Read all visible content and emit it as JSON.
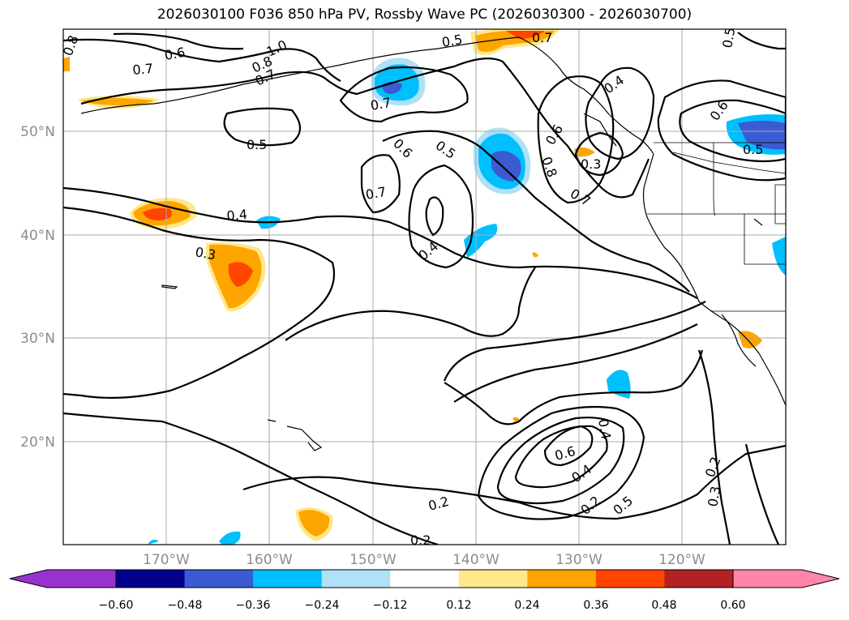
{
  "title": "2026030100 F036 850 hPa PV, Rossby Wave PC (2026030300 - 2026030700)",
  "latitude_labels": [
    "50°N",
    "40°N",
    "30°N",
    "20°N"
  ],
  "longitude_labels": [
    "170°W",
    "160°W",
    "150°W",
    "140°W",
    "130°W",
    "120°W"
  ],
  "contour_labels": [
    "0.8",
    "0.6",
    "0.7",
    "1.0",
    "0.8",
    "0.7",
    "0.5",
    "0.7",
    "0.5",
    "0.6",
    "0.5",
    "0.7",
    "0.4",
    "0.3",
    "0.4",
    "0.6",
    "0.8",
    "0.7",
    "0.3",
    "0.4",
    "0.6",
    "0.5",
    "0.5",
    "0.7",
    "0.4",
    "0.3",
    "0.6",
    "0.4",
    "0.5",
    "0.2",
    "0.2",
    "0.2",
    "0.2",
    "0.3"
  ],
  "colorbar": {
    "ticks": [
      "−0.60",
      "−0.48",
      "−0.36",
      "−0.24",
      "−0.12",
      "0.12",
      "0.24",
      "0.36",
      "0.48",
      "0.60"
    ],
    "colors": [
      "#9932cc",
      "#00008b",
      "#3b5bd3",
      "#00bfff",
      "#afe1f7",
      "#ffffff",
      "#ffe88c",
      "#ffa500",
      "#ff4500",
      "#b22222",
      "#ff86a8"
    ]
  },
  "colors": {
    "gridline": "#a9a9a9",
    "axis_label": "#8c8c8c",
    "contour": "#000000"
  }
}
